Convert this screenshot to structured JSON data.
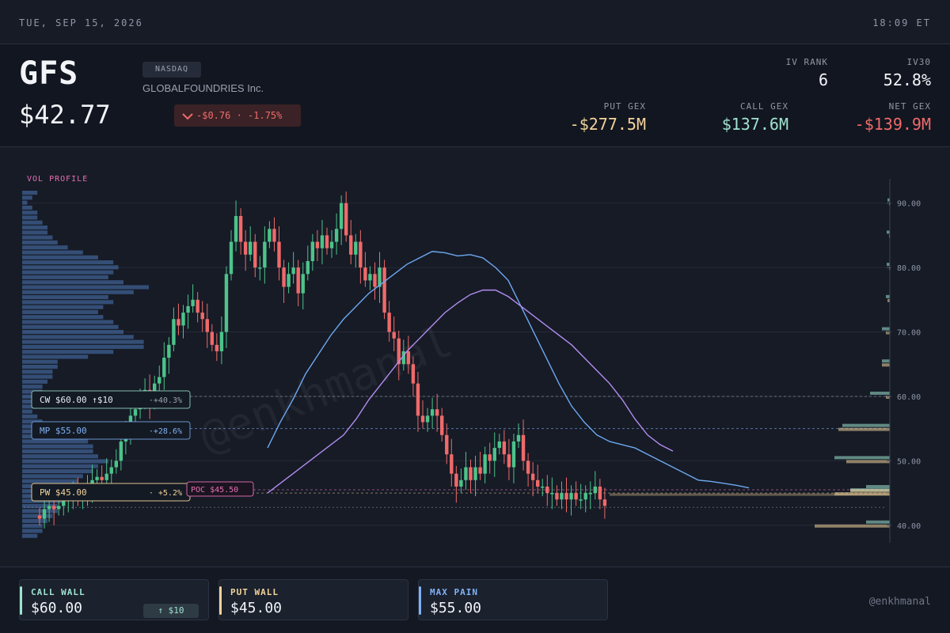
{
  "topbar": {
    "date": "TUE, SEP 15, 2026",
    "time": "18:09 ET"
  },
  "header": {
    "ticker": "GFS",
    "exchange": "NASDAQ",
    "company": "GLOBALFOUNDRIES Inc.",
    "price": "$42.77",
    "change": "-$0.76 · -1.75%",
    "iv_rank_label": "IV RANK",
    "iv_rank": "6",
    "iv30_label": "IV30",
    "iv30": "52.8%",
    "put_gex_label": "PUT GEX",
    "put_gex": "-$277.5M",
    "call_gex_label": "CALL GEX",
    "call_gex": "$137.6M",
    "net_gex_label": "NET GEX",
    "net_gex": "-$139.9M"
  },
  "colors": {
    "up": "#4cc38a",
    "down": "#ef6a6a",
    "call": "#9fe3d0",
    "put": "#f3d49a",
    "maxpain": "#7fb1f5",
    "poc": "#e86fb4",
    "ma_fast": "#6ea8f0",
    "ma_slow": "#b48cf0",
    "neg": "#f06b6b"
  },
  "chart_data": {
    "type": "candlestick",
    "vol_profile_label": "VOL PROFILE",
    "y_ticks": [
      90,
      80,
      70,
      60,
      50,
      40
    ],
    "y_tick_labels": [
      "90.00",
      "80.00",
      "70.00",
      "60.00",
      "50.00",
      "40.00"
    ],
    "ylim": [
      38.5,
      95
    ],
    "levels": {
      "cw": {
        "label": "CW $60.00 ↑$10",
        "pct": "·+40.3%",
        "value": 60
      },
      "mp": {
        "label": "MP $55.00",
        "pct": "·+28.6%",
        "value": 55
      },
      "pw": {
        "label": "PW $45.00",
        "pct": "· +5.2%",
        "value": 45
      },
      "poc": {
        "label": "POC $45.50",
        "value": 45.5
      },
      "last": {
        "value": 42.77
      }
    },
    "watermark": "@enkhmanal",
    "closes": [
      41,
      42.5,
      43,
      42.5,
      43,
      44,
      45,
      45,
      44,
      45,
      46,
      47,
      47.5,
      47,
      48,
      49,
      50,
      53,
      55,
      57,
      58,
      60,
      61,
      59,
      62,
      63,
      66,
      68,
      72,
      71,
      73,
      74,
      75,
      73,
      72,
      70,
      68,
      67,
      70,
      79,
      84,
      88,
      84,
      82,
      84,
      80,
      80,
      84,
      86,
      84,
      80,
      77,
      79,
      80,
      76,
      79,
      81,
      84,
      83,
      85,
      83,
      84,
      86,
      90,
      85,
      82,
      84,
      80,
      78,
      79,
      77,
      80,
      73,
      70,
      69,
      65,
      67,
      65,
      62,
      57,
      56,
      57,
      58,
      57,
      54,
      51,
      48,
      46,
      47,
      49,
      47,
      49,
      48,
      51,
      50,
      52,
      53,
      51,
      49,
      53,
      54,
      50,
      48,
      47,
      46,
      46,
      45,
      45,
      44,
      45,
      44,
      45,
      44,
      44,
      45,
      45,
      46,
      44,
      43
    ],
    "ma_fast": [
      [
        180,
        52
      ],
      [
        190,
        56
      ],
      [
        200,
        59.5
      ],
      [
        210,
        63.5
      ],
      [
        220,
        66.5
      ],
      [
        230,
        69.5
      ],
      [
        240,
        72
      ],
      [
        250,
        74
      ],
      [
        260,
        76
      ],
      [
        270,
        77.5
      ],
      [
        280,
        79
      ],
      [
        290,
        80.5
      ],
      [
        300,
        81.5
      ],
      [
        310,
        82.5
      ],
      [
        320,
        82.3
      ],
      [
        330,
        81.8
      ],
      [
        340,
        82
      ],
      [
        350,
        81.5
      ],
      [
        360,
        80
      ],
      [
        370,
        78
      ],
      [
        380,
        74
      ],
      [
        390,
        70
      ],
      [
        400,
        66
      ],
      [
        410,
        62
      ],
      [
        420,
        58.5
      ],
      [
        430,
        56
      ],
      [
        440,
        54
      ],
      [
        450,
        53
      ],
      [
        460,
        52.5
      ],
      [
        470,
        52
      ],
      [
        480,
        51
      ],
      [
        490,
        50
      ],
      [
        500,
        49
      ],
      [
        510,
        48
      ],
      [
        520,
        47
      ],
      [
        530,
        46.8
      ],
      [
        540,
        46.5
      ],
      [
        550,
        46.2
      ],
      [
        560,
        45.8
      ]
    ],
    "ma_slow": [
      [
        180,
        45
      ],
      [
        200,
        48
      ],
      [
        220,
        51
      ],
      [
        240,
        54
      ],
      [
        250,
        56.5
      ],
      [
        260,
        59.5
      ],
      [
        270,
        62
      ],
      [
        280,
        64.5
      ],
      [
        290,
        67
      ],
      [
        300,
        69
      ],
      [
        310,
        71
      ],
      [
        320,
        73
      ],
      [
        330,
        74.5
      ],
      [
        340,
        75.8
      ],
      [
        350,
        76.5
      ],
      [
        360,
        76.5
      ],
      [
        370,
        75.5
      ],
      [
        380,
        74
      ],
      [
        390,
        72.5
      ],
      [
        400,
        71
      ],
      [
        410,
        69.5
      ],
      [
        420,
        68
      ],
      [
        430,
        66
      ],
      [
        440,
        64
      ],
      [
        450,
        62
      ],
      [
        460,
        59.5
      ],
      [
        470,
        56.5
      ],
      [
        480,
        54
      ],
      [
        490,
        52.5
      ],
      [
        500,
        51.5
      ]
    ],
    "vol_profile": [
      3,
      2,
      1,
      2,
      3,
      3,
      4,
      5,
      5,
      6,
      7,
      9,
      12,
      15,
      18,
      19,
      18,
      17,
      20,
      25,
      22,
      17,
      18,
      16,
      15,
      16,
      18,
      19,
      20,
      22,
      24,
      24,
      18,
      13,
      7,
      7,
      6,
      6,
      5,
      4,
      4,
      3,
      3,
      3,
      2,
      3,
      4,
      6,
      10,
      12,
      13,
      14,
      14,
      15,
      17,
      15,
      14,
      12,
      11,
      10,
      9,
      9,
      8,
      7,
      7,
      6,
      5,
      4,
      4,
      3
    ],
    "gex_bars": [
      {
        "value": 40,
        "call": 0.3,
        "put": 0.95
      },
      {
        "value": 45,
        "call": 0.5,
        "put": 0.7
      },
      {
        "value": 45.5,
        "call": 0.3,
        "put": 0.5
      },
      {
        "value": 50,
        "call": 0.7,
        "put": 0.55
      },
      {
        "value": 55,
        "call": 0.6,
        "put": 0.65
      },
      {
        "value": 60,
        "call": 0.25,
        "put": 0.05
      },
      {
        "value": 65,
        "call": 0.1,
        "put": 0.1
      },
      {
        "value": 70,
        "call": 0.1,
        "put": 0.05
      },
      {
        "value": 75,
        "call": 0.05,
        "put": 0.03
      },
      {
        "value": 80,
        "call": 0.04,
        "put": 0.01
      },
      {
        "value": 85,
        "call": 0.04,
        "put": 0.01
      },
      {
        "value": 90,
        "call": 0.03,
        "put": 0.01
      }
    ]
  },
  "footer": {
    "call_wall_label": "CALL WALL",
    "call_wall": "$60.00",
    "call_wall_badge": "↑ $10",
    "put_wall_label": "PUT WALL",
    "put_wall": "$45.00",
    "max_pain_label": "MAX PAIN",
    "max_pain": "$55.00",
    "handle": "@enkhmanal"
  }
}
